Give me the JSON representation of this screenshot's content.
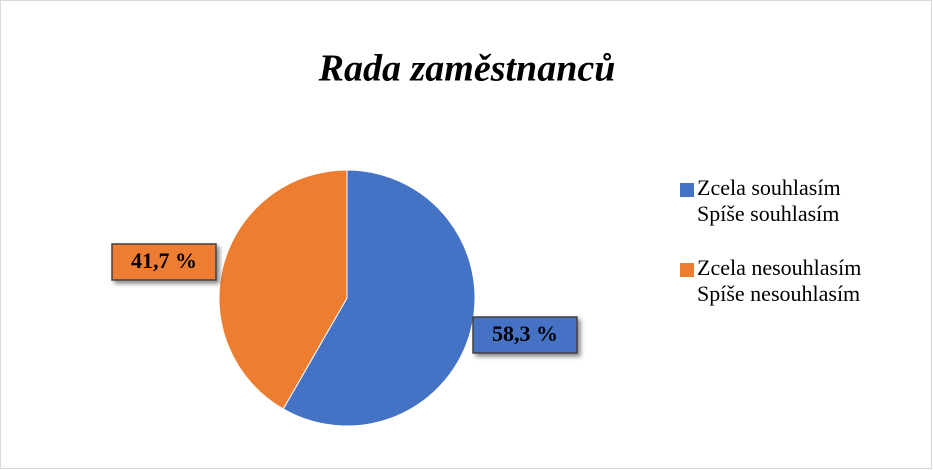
{
  "chart_data": {
    "type": "pie",
    "title": "Rada zaměstnanců",
    "categories": [
      "Zcela souhlasím\nSpíše souhlasím",
      "Zcela nesouhlasím\nSpíše nesouhlasím"
    ],
    "values": [
      58.3,
      41.7
    ],
    "value_labels": [
      "58,3 %",
      "41,7 %"
    ],
    "colors": [
      "#4472c4",
      "#ed7d31"
    ],
    "legend": "right"
  }
}
